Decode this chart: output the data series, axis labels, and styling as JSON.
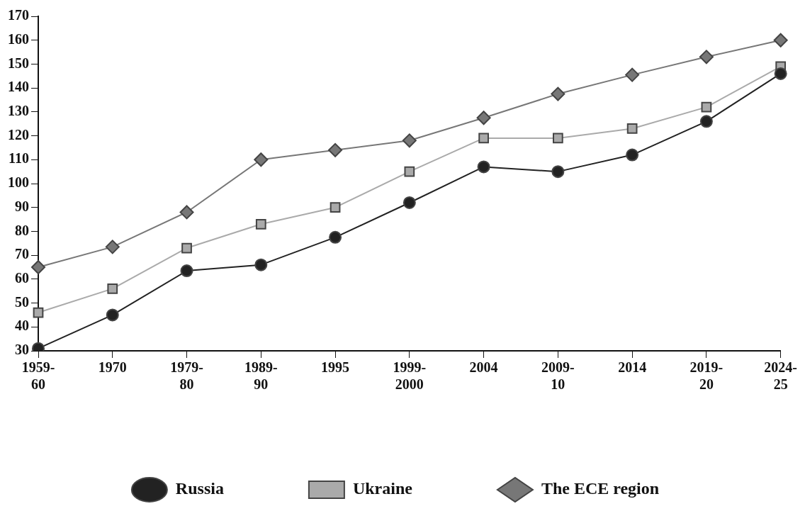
{
  "chart_data": {
    "type": "line",
    "categories": [
      "1959-60",
      "1970",
      "1979-80",
      "1989-90",
      "1995",
      "1999-2000",
      "2004",
      "2009-10",
      "2014",
      "2019-20",
      "2024-25"
    ],
    "series": [
      {
        "name": "Russia",
        "color": "#222222",
        "marker": "circle",
        "values": [
          31,
          45,
          63.5,
          66,
          77.5,
          92,
          107,
          105,
          112,
          126,
          146
        ]
      },
      {
        "name": "Ukraine",
        "color": "#aaaaaa",
        "marker": "square",
        "values": [
          46,
          56,
          73,
          83,
          90,
          105,
          119,
          119,
          123,
          132,
          149
        ]
      },
      {
        "name": "The ECE region",
        "color": "#777777",
        "marker": "diamond",
        "values": [
          65,
          73.5,
          88,
          110,
          114,
          118,
          127.5,
          137.5,
          145.5,
          153,
          160
        ]
      }
    ],
    "ylim": [
      30,
      170
    ],
    "yticks": [
      30,
      40,
      50,
      60,
      70,
      80,
      90,
      100,
      110,
      120,
      130,
      140,
      150,
      160,
      170
    ],
    "grid": false,
    "legend": "bottom",
    "line_style": "solid"
  }
}
